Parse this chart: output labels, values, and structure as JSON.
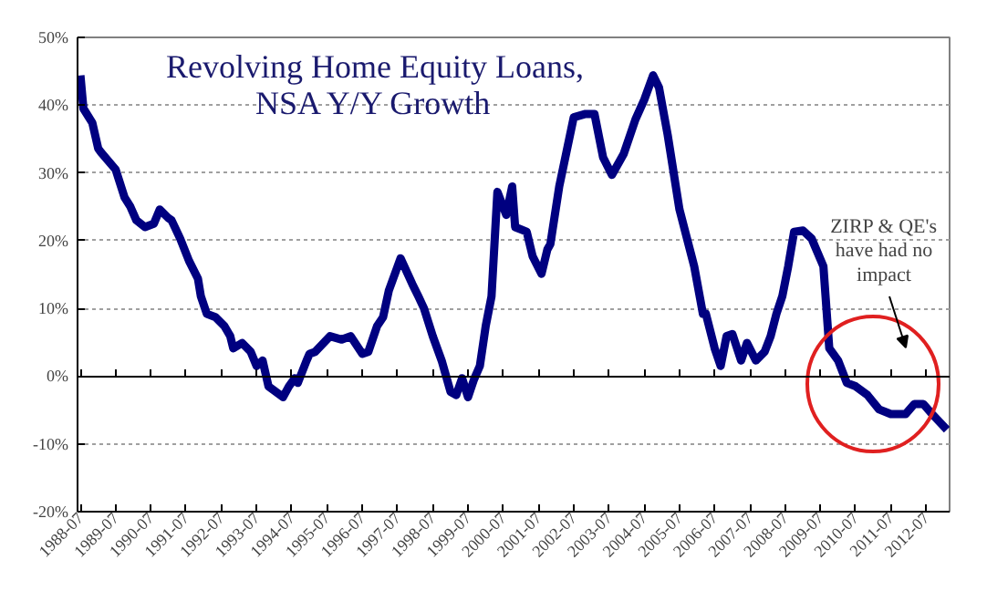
{
  "chart_data": {
    "type": "line",
    "title": "Revolving Home Equity Loans,\nNSA Y/Y Growth",
    "x": [
      "1988-07",
      "1988-08",
      "1988-11",
      "1989-01",
      "1989-02",
      "1989-07",
      "1989-10",
      "1989-12",
      "1990-02",
      "1990-05",
      "1990-08",
      "1990-10",
      "1991-01",
      "1991-02",
      "1991-05",
      "1991-08",
      "1991-11",
      "1991-12",
      "1992-02",
      "1992-05",
      "1992-08",
      "1992-10",
      "1992-11",
      "1993-02",
      "1993-05",
      "1993-07",
      "1993-09",
      "1993-11",
      "1994-04",
      "1994-06",
      "1994-08",
      "1994-09",
      "1994-12",
      "1995-01",
      "1995-03",
      "1995-08",
      "1995-12",
      "1996-03",
      "1996-07",
      "1996-09",
      "1996-12",
      "1997-02",
      "1997-04",
      "1997-08",
      "1997-12",
      "1998-02",
      "1998-04",
      "1998-07",
      "1998-10",
      "1999-01",
      "1999-03",
      "1999-05",
      "1999-07",
      "1999-09",
      "1999-11",
      "2000-01",
      "2000-03",
      "2000-05",
      "2000-08",
      "2000-10",
      "2000-11",
      "2001-03",
      "2001-05",
      "2001-08",
      "2001-10",
      "2001-11",
      "2002-02",
      "2002-07",
      "2002-11",
      "2003-02",
      "2003-05",
      "2003-08",
      "2003-12",
      "2004-04",
      "2004-07",
      "2004-10",
      "2004-12",
      "2005-03",
      "2005-07",
      "2005-12",
      "2006-03",
      "2006-04",
      "2006-07",
      "2006-09",
      "2006-11",
      "2007-01",
      "2007-04",
      "2007-06",
      "2007-09",
      "2007-12",
      "2008-02",
      "2008-04",
      "2008-06",
      "2008-08",
      "2008-10",
      "2009-01",
      "2009-04",
      "2009-08",
      "2009-10",
      "2010-01",
      "2010-04",
      "2010-07",
      "2010-11",
      "2011-03",
      "2011-07",
      "2011-12",
      "2012-03",
      "2012-06",
      "2012-09",
      "2013-02"
    ],
    "series": [
      {
        "color": "#000080",
        "values": [
          44.4,
          39.5,
          37.4,
          33.6,
          33,
          30.5,
          26.4,
          25,
          23,
          22,
          22.5,
          24.6,
          23.3,
          23,
          20.3,
          17,
          14.4,
          11.8,
          9.2,
          8.7,
          7.4,
          5.9,
          4.1,
          4.9,
          3.6,
          1.5,
          2.3,
          -1.5,
          -3.1,
          -1.5,
          -0.3,
          -1,
          2.3,
          3.3,
          3.6,
          5.9,
          5.4,
          5.9,
          3.3,
          3.6,
          7.4,
          8.7,
          12.6,
          17.4,
          13.6,
          11.8,
          10,
          5.9,
          2.3,
          -2.3,
          -2.8,
          -0.3,
          -3.1,
          -0.5,
          1.5,
          7.4,
          11.8,
          27.2,
          23.8,
          28,
          22,
          21.3,
          17.7,
          15.1,
          18.7,
          19.5,
          28,
          38.2,
          38.7,
          38.7,
          32.3,
          29.7,
          32.8,
          37.9,
          40.8,
          44.4,
          42.6,
          35.6,
          24.6,
          16.2,
          9.2,
          9.2,
          4.1,
          1.5,
          5.9,
          6.2,
          2.3,
          4.9,
          2.3,
          3.6,
          5.9,
          9.2,
          11.8,
          16.2,
          21.3,
          21.5,
          20.3,
          16.2,
          4.1,
          2.3,
          -1,
          -1.5,
          -2.8,
          -4.9,
          -5.6,
          -5.6,
          -4.1,
          -4.1,
          -5.6,
          -7.9
        ]
      }
    ],
    "xlim": [
      "1988-06",
      "2013-03"
    ],
    "xticks": [
      "1988-07",
      "1989-07",
      "1990-07",
      "1991-07",
      "1992-07",
      "1993-07",
      "1994-07",
      "1995-07",
      "1996-07",
      "1997-07",
      "1998-07",
      "1999-07",
      "2000-07",
      "2001-07",
      "2002-07",
      "2003-07",
      "2004-07",
      "2005-07",
      "2006-07",
      "2007-07",
      "2008-07",
      "2009-07",
      "2010-07",
      "2011-07",
      "2012-07"
    ],
    "ylim": [
      -20,
      50
    ],
    "yticks": [
      {
        "value": -20,
        "label": "-20%"
      },
      {
        "value": -10,
        "label": "-10%"
      },
      {
        "value": 0,
        "label": "0%"
      },
      {
        "value": 10,
        "label": "10%"
      },
      {
        "value": 20,
        "label": "20%"
      },
      {
        "value": 30,
        "label": "30%"
      },
      {
        "value": 40,
        "label": "40%"
      },
      {
        "value": 50,
        "label": "50%"
      }
    ],
    "grid": "y",
    "marker": "none",
    "line_style": "solid",
    "annotations": [
      "ZIRP & QE's\nhave had no\nimpact"
    ]
  }
}
